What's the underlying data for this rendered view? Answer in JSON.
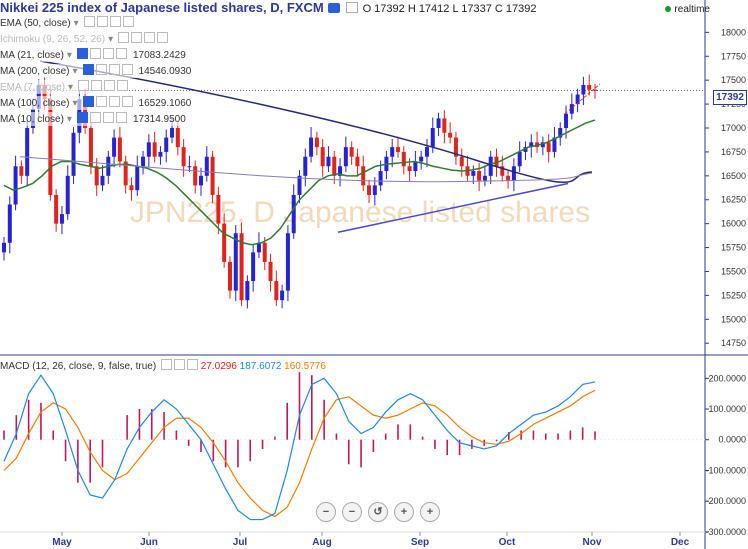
{
  "header": {
    "title": "Nikkei 225 index of Japanese listed shares, D, FXCM",
    "ohlc": "O 17392 H 17412 L 17337 C 17392",
    "realtime": "realtime"
  },
  "indicators": [
    {
      "label": "EMA (50, close)",
      "value": "",
      "faded": false
    },
    {
      "label": "Ichimoku (9, 26, 52, 26)",
      "value": "",
      "faded": true
    },
    {
      "label": "MA (21, close)",
      "value": "17083.2429",
      "faded": false
    },
    {
      "label": "MA (200, close)",
      "value": "14546.0930",
      "faded": false
    },
    {
      "label": "EMA (7, close)",
      "value": "",
      "faded": true
    },
    {
      "label": "MA (100, close)",
      "value": "16529.1060",
      "faded": false
    },
    {
      "label": "MA (10, close)",
      "value": "17314.9500",
      "faded": false
    }
  ],
  "watermark": "JPN225, D  Japanese listed shares",
  "price_tag": "17392",
  "macd": {
    "label": "MACD (12, 26, close, 9, false, true)",
    "v1": "27.0296",
    "v2": "187.6072",
    "v3": "160.5776",
    "colors": {
      "v1": "#e0231b",
      "v2": "#1e88e5",
      "v3": "#f57c00"
    }
  },
  "zoom_controls": [
    "−",
    "−",
    "↺",
    "+",
    "+"
  ],
  "colors": {
    "up": "#2424d6",
    "down": "#e0231b",
    "ma21": "#2e7d2e",
    "ma200": "#1f2b7a",
    "ma100": "#8a7ab8",
    "ma10": "#8e5ba8",
    "trend": "#4a4ad6",
    "axis": "#2b3a9a"
  },
  "chart_data": [
    {
      "type": "candlestick",
      "xlabels": [
        "May",
        "Jun",
        "Jul",
        "Aug",
        "Sep",
        "Oct",
        "Nov",
        "Dec"
      ],
      "ylabels": [
        "18000",
        "17750",
        "17500",
        "17250",
        "17000",
        "16750",
        "16500",
        "16250",
        "16000",
        "15750",
        "15500",
        "15250",
        "15000",
        "14750"
      ],
      "ylim": [
        14700,
        18150
      ],
      "last_price": 17392,
      "closes": [
        15800,
        16200,
        16600,
        16500,
        17000,
        17200,
        17450,
        17300,
        16300,
        16000,
        16100,
        16500,
        16950,
        17300,
        17000,
        16600,
        16400,
        16500,
        16700,
        16900,
        16650,
        16400,
        16350,
        16600,
        16700,
        16850,
        16700,
        16750,
        16900,
        17000,
        16800,
        16600,
        16600,
        16400,
        16500,
        16700,
        16300,
        16000,
        15600,
        15300,
        15900,
        15200,
        15400,
        15700,
        15800,
        15600,
        15400,
        15200,
        15300,
        15900,
        16300,
        16500,
        16700,
        16900,
        16800,
        16600,
        16700,
        16500,
        16600,
        16800,
        16700,
        16600,
        16400,
        16300,
        16400,
        16550,
        16700,
        16800,
        16750,
        16600,
        16550,
        16650,
        16700,
        16800,
        17000,
        17100,
        16950,
        16900,
        16700,
        16600,
        16500,
        16550,
        16450,
        16500,
        16700,
        16600,
        16500,
        16450,
        16600,
        16750,
        16800,
        16850,
        16800,
        16850,
        16750,
        16900,
        17000,
        17150,
        17250,
        17350,
        17450,
        17400,
        17392
      ],
      "ma21": [
        16400,
        16350,
        16380,
        16420,
        16500,
        16600,
        16650,
        16650,
        16620,
        16600,
        16580,
        16600,
        16620,
        16620,
        16600,
        16580,
        16540,
        16480,
        16400,
        16300,
        16200,
        16100,
        16000,
        15900,
        15850,
        15800,
        15780,
        15800,
        15850,
        15950,
        16100,
        16250,
        16350,
        16450,
        16500,
        16520,
        16500,
        16500,
        16550,
        16600,
        16620,
        16630,
        16640,
        16650,
        16630,
        16600,
        16580,
        16560,
        16550,
        16560,
        16580,
        16620,
        16650,
        16700,
        16750,
        16800,
        16820,
        16850,
        16900,
        16950,
        17000,
        17050,
        17083
      ],
      "macd_line": [
        -70,
        20,
        150,
        210,
        150,
        30,
        -100,
        -180,
        -190,
        -130,
        -30,
        40,
        90,
        130,
        100,
        50,
        0,
        -80,
        -160,
        -230,
        -260,
        -260,
        -240,
        -100,
        80,
        180,
        200,
        150,
        60,
        20,
        40,
        90,
        130,
        150,
        130,
        80,
        30,
        -10,
        -20,
        -30,
        -20,
        20,
        50,
        80,
        90,
        110,
        140,
        180,
        188
      ],
      "signal_line": [
        -100,
        -60,
        20,
        90,
        120,
        100,
        40,
        -40,
        -100,
        -130,
        -110,
        -60,
        -10,
        40,
        70,
        70,
        40,
        -10,
        -70,
        -140,
        -190,
        -230,
        -250,
        -220,
        -140,
        -30,
        70,
        130,
        140,
        110,
        80,
        70,
        80,
        100,
        120,
        110,
        80,
        40,
        10,
        -10,
        -15,
        -5,
        20,
        50,
        70,
        90,
        110,
        140,
        161
      ],
      "histogram": [
        30,
        80,
        130,
        120,
        30,
        -70,
        -140,
        -140,
        -90,
        0,
        80,
        100,
        100,
        90,
        30,
        -20,
        -40,
        -70,
        -90,
        -90,
        -70,
        -30,
        10,
        120,
        220,
        210,
        130,
        20,
        -80,
        -90,
        -40,
        20,
        50,
        50,
        10,
        -30,
        -50,
        -50,
        -30,
        -20,
        -5,
        25,
        30,
        30,
        20,
        20,
        30,
        40,
        27
      ],
      "macd_ylabels": [
        "200.0000",
        "100.0000",
        "0.0000",
        "-100.0000",
        "-200.0000",
        "-300.0000"
      ],
      "macd_ylim": [
        -320,
        240
      ]
    }
  ]
}
